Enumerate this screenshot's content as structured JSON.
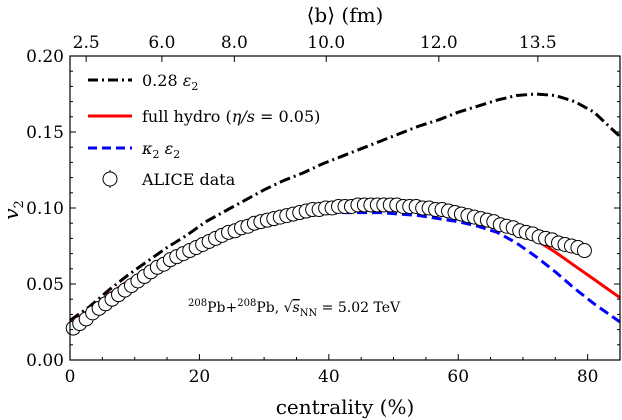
{
  "chart_data": {
    "type": "line",
    "title": "",
    "xlabel": "centrality (%)",
    "ylabel": "v2",
    "ylabel_symbol": "v",
    "ylabel_sub": "2",
    "top_xlabel": "⟨b⟩ (fm)",
    "xlim": [
      0,
      85
    ],
    "ylim": [
      0.0,
      0.2
    ],
    "xticks": [
      0,
      20,
      40,
      60,
      80
    ],
    "xtick_labels": [
      "0",
      "20",
      "40",
      "60",
      "80"
    ],
    "yticks": [
      0.0,
      0.05,
      0.1,
      0.15,
      0.2
    ],
    "ytick_labels": [
      "0.00",
      "0.05",
      "0.10",
      "0.15",
      "0.20"
    ],
    "top_ticks": [
      {
        "label": "2.5",
        "centrality": 2.5
      },
      {
        "label": "6.0",
        "centrality": 14.2
      },
      {
        "label": "8.0",
        "centrality": 25.4
      },
      {
        "label": "10.0",
        "centrality": 39.6
      },
      {
        "label": "12.0",
        "centrality": 57.0
      },
      {
        "label": "13.5",
        "centrality": 72.3
      }
    ],
    "annotation": "208Pb+208Pb, √sNN = 5.02 TeV",
    "annotation_parts": {
      "sup1": "208",
      "a": "Pb+",
      "sup2": "208",
      "b": "Pb, ",
      "sqrt": "√",
      "s": "s",
      "sub": "NN",
      "rest": " = 5.02 TeV"
    },
    "legend_position": "top-left",
    "series": [
      {
        "name": "0.28 ε2",
        "legend": {
          "main": "0.28 ",
          "sym": "ε",
          "sub": "2"
        },
        "color": "#000000",
        "style": "dashdot",
        "x": [
          0,
          3,
          6,
          9,
          12,
          15,
          18,
          21,
          24,
          27,
          30,
          33,
          36,
          39,
          42,
          45,
          48,
          51,
          54,
          57,
          60,
          63,
          66,
          69,
          72,
          75,
          78,
          81,
          84,
          85
        ],
        "y": [
          0.026,
          0.035,
          0.046,
          0.056,
          0.065,
          0.074,
          0.082,
          0.091,
          0.098,
          0.105,
          0.112,
          0.118,
          0.123,
          0.129,
          0.134,
          0.139,
          0.144,
          0.149,
          0.154,
          0.158,
          0.163,
          0.167,
          0.171,
          0.174,
          0.175,
          0.174,
          0.17,
          0.163,
          0.151,
          0.147
        ]
      },
      {
        "name": "full hydro (η/s = 0.05)",
        "legend": {
          "main": "full hydro (",
          "sym": "η/s",
          "rest": " = 0.05)"
        },
        "color": "#ff0000",
        "style": "solid",
        "x": [
          0,
          3,
          6,
          9,
          12,
          15,
          18,
          21,
          24,
          27,
          30,
          33,
          36,
          39,
          42,
          45,
          48,
          51,
          54,
          57,
          60,
          63,
          66,
          69,
          72,
          75,
          78,
          81,
          84,
          85
        ],
        "y": [
          0.024,
          0.033,
          0.043,
          0.052,
          0.06,
          0.067,
          0.073,
          0.079,
          0.084,
          0.088,
          0.092,
          0.095,
          0.097,
          0.098,
          0.099,
          0.1,
          0.1,
          0.1,
          0.099,
          0.098,
          0.096,
          0.094,
          0.091,
          0.086,
          0.079,
          0.071,
          0.062,
          0.053,
          0.044,
          0.041
        ]
      },
      {
        "name": "κ2 ε2",
        "legend": {
          "sym1": "κ",
          "sub1": "2",
          "sym2": "ε",
          "sub2": "2"
        },
        "color": "#0000ff",
        "style": "dashed",
        "x": [
          0,
          3,
          6,
          9,
          12,
          15,
          18,
          21,
          24,
          27,
          30,
          33,
          36,
          39,
          42,
          45,
          48,
          51,
          54,
          57,
          60,
          63,
          66,
          69,
          72,
          75,
          78,
          81,
          84,
          85
        ],
        "y": [
          0.023,
          0.032,
          0.042,
          0.051,
          0.059,
          0.066,
          0.072,
          0.078,
          0.083,
          0.087,
          0.09,
          0.093,
          0.095,
          0.096,
          0.097,
          0.097,
          0.097,
          0.096,
          0.095,
          0.093,
          0.091,
          0.088,
          0.084,
          0.077,
          0.068,
          0.058,
          0.047,
          0.037,
          0.028,
          0.025
        ]
      },
      {
        "name": "ALICE data",
        "legend": {
          "main": "ALICE data"
        },
        "color": "#000000",
        "style": "markers",
        "x": [
          0.5,
          1.5,
          2.5,
          3.5,
          4.5,
          5.5,
          6.5,
          7.5,
          8.5,
          9.5,
          10.5,
          11.5,
          12.5,
          13.5,
          14.5,
          15.5,
          16.5,
          17.5,
          18.5,
          19.5,
          20.5,
          21.5,
          22.5,
          23.5,
          24.5,
          25.5,
          26.5,
          27.5,
          28.5,
          29.5,
          30.5,
          31.5,
          32.5,
          33.5,
          34.5,
          35.5,
          36.5,
          37.5,
          38.5,
          39.5,
          40.5,
          41.5,
          42.5,
          43.5,
          44.5,
          45.5,
          46.5,
          47.5,
          48.5,
          49.5,
          50.5,
          51.5,
          52.5,
          53.5,
          54.5,
          55.5,
          56.5,
          57.5,
          58.5,
          59.5,
          60.5,
          61.5,
          62.5,
          63.5,
          64.5,
          65.5,
          66.5,
          67.5,
          68.5,
          69.5,
          70.5,
          71.5,
          72.5,
          73.5,
          74.5,
          75.5,
          76.5,
          77.5,
          78.5,
          79.5
        ],
        "y": [
          0.021,
          0.024,
          0.027,
          0.031,
          0.034,
          0.037,
          0.04,
          0.043,
          0.046,
          0.049,
          0.052,
          0.055,
          0.058,
          0.061,
          0.063,
          0.066,
          0.068,
          0.07,
          0.072,
          0.074,
          0.076,
          0.078,
          0.08,
          0.082,
          0.084,
          0.085,
          0.087,
          0.088,
          0.09,
          0.091,
          0.092,
          0.093,
          0.094,
          0.095,
          0.096,
          0.097,
          0.098,
          0.099,
          0.099,
          0.1,
          0.1,
          0.101,
          0.101,
          0.101,
          0.102,
          0.102,
          0.102,
          0.102,
          0.102,
          0.102,
          0.102,
          0.101,
          0.101,
          0.101,
          0.1,
          0.1,
          0.099,
          0.099,
          0.098,
          0.097,
          0.096,
          0.095,
          0.094,
          0.093,
          0.092,
          0.091,
          0.089,
          0.088,
          0.087,
          0.085,
          0.084,
          0.083,
          0.081,
          0.08,
          0.079,
          0.077,
          0.076,
          0.075,
          0.074,
          0.072
        ]
      }
    ]
  }
}
